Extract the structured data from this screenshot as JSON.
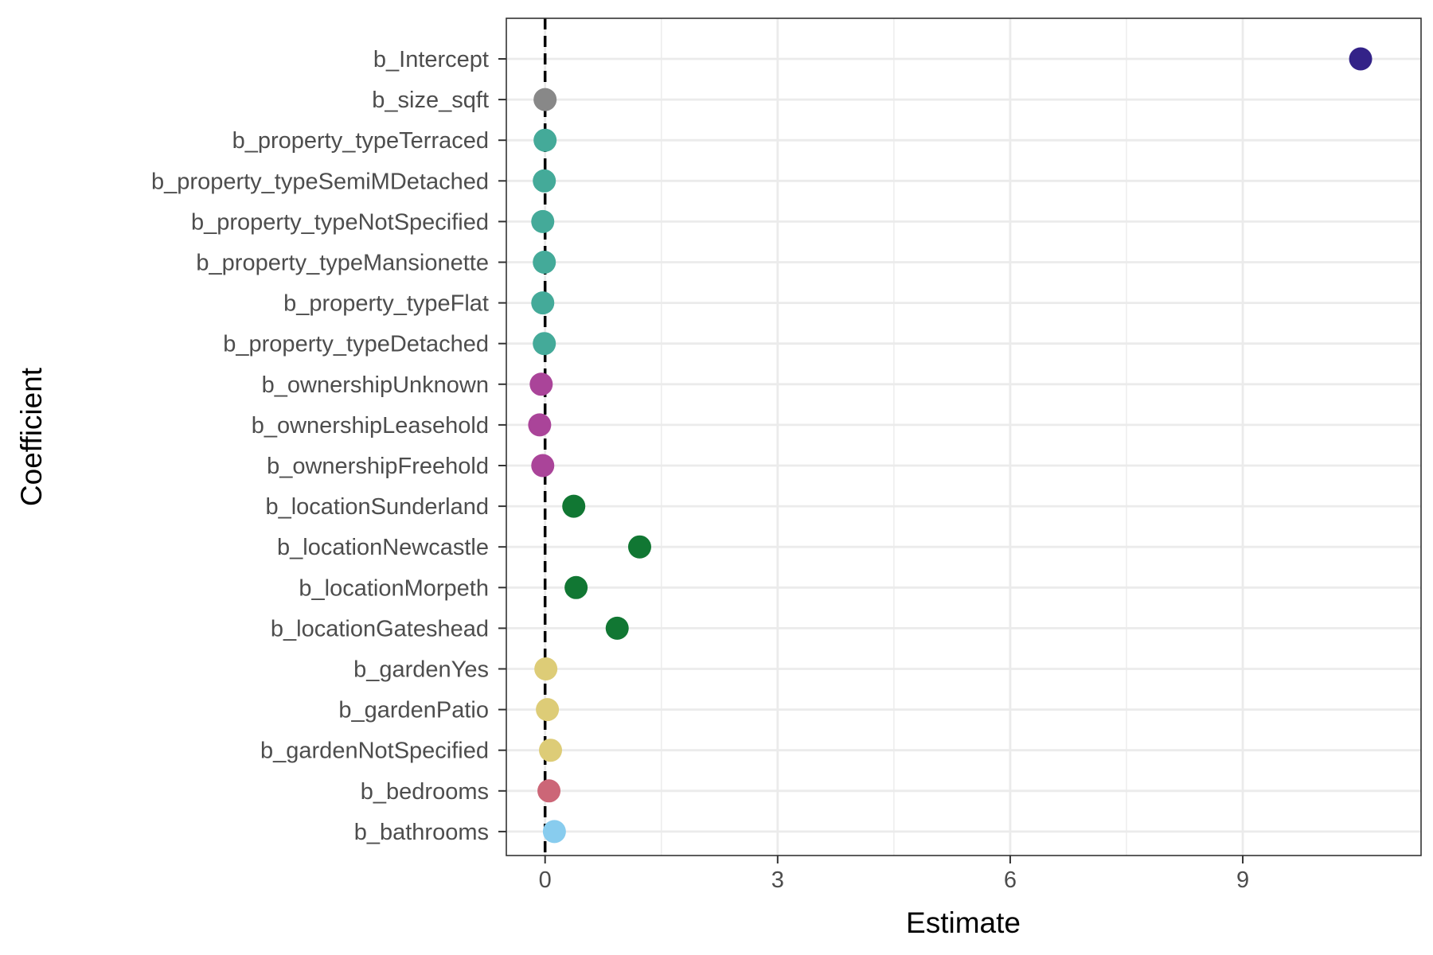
{
  "chart_data": {
    "type": "scatter",
    "xlabel": "Estimate",
    "ylabel": "Coefficient",
    "xlim": [
      -0.5,
      11.3
    ],
    "xticks": [
      "0",
      "3",
      "6",
      "9"
    ],
    "xtick_values": [
      0,
      3,
      6,
      9
    ],
    "reference_line": {
      "x": 0,
      "style": "dashed",
      "color": "#000000"
    },
    "grid": true,
    "legend": "none",
    "points": [
      {
        "label": "b_Intercept",
        "value": 10.52,
        "color": "#332288"
      },
      {
        "label": "b_size_sqft",
        "value": 0.0,
        "color": "#888888"
      },
      {
        "label": "b_property_typeTerraced",
        "value": 0.0,
        "color": "#44AA99"
      },
      {
        "label": "b_property_typeSemiMDetached",
        "value": -0.01,
        "color": "#44AA99"
      },
      {
        "label": "b_property_typeNotSpecified",
        "value": -0.03,
        "color": "#44AA99"
      },
      {
        "label": "b_property_typeMansionette",
        "value": -0.01,
        "color": "#44AA99"
      },
      {
        "label": "b_property_typeFlat",
        "value": -0.03,
        "color": "#44AA99"
      },
      {
        "label": "b_property_typeDetached",
        "value": -0.01,
        "color": "#44AA99"
      },
      {
        "label": "b_ownershipUnknown",
        "value": -0.05,
        "color": "#AA4499"
      },
      {
        "label": "b_ownershipLeasehold",
        "value": -0.07,
        "color": "#AA4499"
      },
      {
        "label": "b_ownershipFreehold",
        "value": -0.03,
        "color": "#AA4499"
      },
      {
        "label": "b_locationSunderland",
        "value": 0.37,
        "color": "#117733"
      },
      {
        "label": "b_locationNewcastle",
        "value": 1.22,
        "color": "#117733"
      },
      {
        "label": "b_locationMorpeth",
        "value": 0.4,
        "color": "#117733"
      },
      {
        "label": "b_locationGateshead",
        "value": 0.93,
        "color": "#117733"
      },
      {
        "label": "b_gardenYes",
        "value": 0.01,
        "color": "#DDCC77"
      },
      {
        "label": "b_gardenPatio",
        "value": 0.03,
        "color": "#DDCC77"
      },
      {
        "label": "b_gardenNotSpecified",
        "value": 0.07,
        "color": "#DDCC77"
      },
      {
        "label": "b_bedrooms",
        "value": 0.05,
        "color": "#CC6677"
      },
      {
        "label": "b_bathrooms",
        "value": 0.12,
        "color": "#88CCEE"
      }
    ]
  }
}
